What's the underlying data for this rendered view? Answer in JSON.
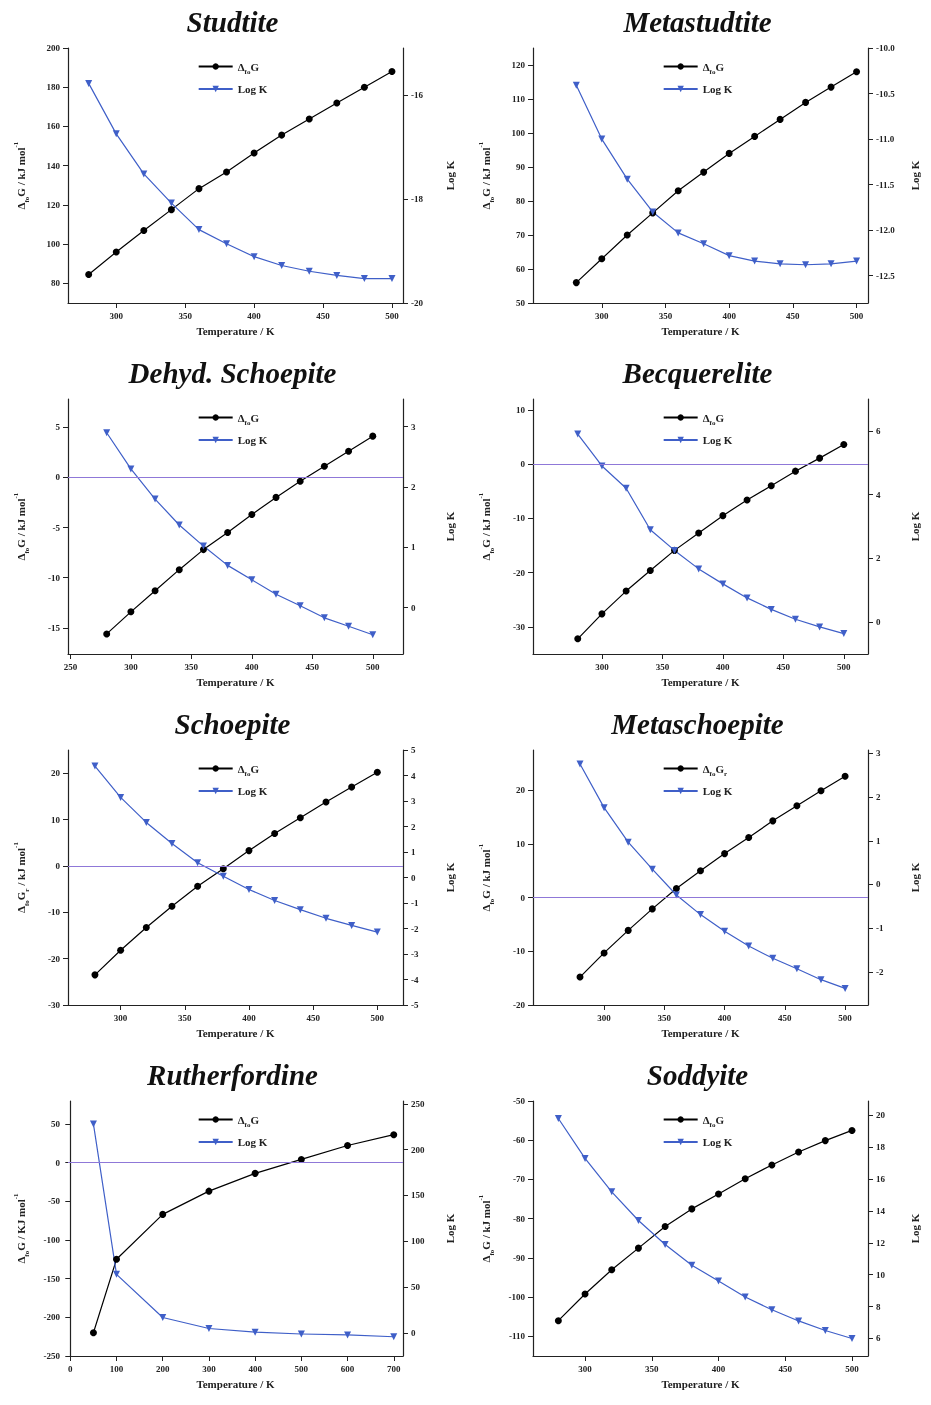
{
  "chart_data": [
    {
      "type": "line",
      "title": "Studtite",
      "xlabel": "Temperature / K",
      "ylabel": "Δ$_{fo}$G / kJ mol$^{-1}$",
      "y2label": "Log K",
      "legend": "top",
      "x": [
        280,
        300,
        320,
        340,
        360,
        380,
        400,
        420,
        440,
        460,
        480,
        500
      ],
      "series": [
        {
          "name": "Δ$_{fo}$G",
          "color": "#000000",
          "marker": "circle",
          "values": [
            84.5,
            96,
            107,
            117.6,
            128.3,
            136.8,
            146.5,
            155.6,
            163.8,
            172,
            180,
            188
          ]
        },
        {
          "name": "Log K",
          "color": "#3f5fc8",
          "marker": "triangle",
          "axis": "y2",
          "values": [
            -15.78,
            -16.75,
            -17.52,
            -18.08,
            -18.59,
            -18.86,
            -19.11,
            -19.28,
            -19.39,
            -19.47,
            -19.53,
            -19.53
          ]
        }
      ],
      "xlim": [
        265,
        508
      ],
      "xticks": [
        300,
        350,
        400,
        450,
        500
      ],
      "ylim": [
        70,
        200
      ],
      "yticks": [
        80,
        100,
        120,
        140,
        160,
        180,
        200
      ],
      "y2lim": [
        -20,
        -15.1
      ],
      "y2ticks": [
        -20,
        -18,
        -16
      ]
    },
    {
      "type": "line",
      "title": "Metastudtite",
      "xlabel": "Temperature / K",
      "ylabel": "Δ$_{fo}$G / kJ mol$^{-1}$",
      "y2label": "Log K",
      "legend": "top",
      "x": [
        280,
        300,
        320,
        340,
        360,
        380,
        400,
        420,
        440,
        460,
        480,
        500
      ],
      "series": [
        {
          "name": "Δ$_{fo}$G",
          "color": "#000000",
          "marker": "circle",
          "values": [
            56,
            63,
            70,
            76.5,
            83,
            88.5,
            94,
            99,
            104,
            109,
            113.5,
            118
          ]
        },
        {
          "name": "Log K",
          "color": "#3f5fc8",
          "marker": "triangle",
          "axis": "y2",
          "values": [
            -10.41,
            -11.0,
            -11.44,
            -11.8,
            -12.03,
            -12.15,
            -12.28,
            -12.34,
            -12.37,
            -12.38,
            -12.37,
            -12.34
          ]
        }
      ],
      "xlim": [
        246,
        509
      ],
      "xticks": [
        300,
        350,
        400,
        450,
        500
      ],
      "ylim": [
        50,
        125
      ],
      "yticks": [
        50,
        60,
        70,
        80,
        90,
        100,
        110,
        120
      ],
      "y2lim": [
        -12.8,
        -10
      ],
      "y2ticks": [
        {
          "value": -12.5,
          "label": "-12.5"
        },
        {
          "value": -12,
          "label": "-12.0"
        },
        {
          "value": -11.5,
          "label": "-11.5"
        },
        {
          "value": -11,
          "label": "-11.0"
        },
        {
          "value": -10.5,
          "label": "-10.5"
        },
        {
          "value": -10,
          "label": "-10.0"
        }
      ]
    },
    {
      "type": "line",
      "title": "Dehyd. Schoepite",
      "xlabel": "Temperature / K",
      "ylabel": "Δ$_{fo}$G / kJ mol$^{-1}$",
      "y2label": "Log K",
      "legend": "top",
      "x": [
        280,
        300,
        320,
        340,
        360,
        380,
        400,
        420,
        440,
        460,
        480,
        500
      ],
      "series": [
        {
          "name": "Δ$_{fo}$G",
          "color": "#000000",
          "marker": "circle",
          "values": [
            -15.6,
            -13.4,
            -11.3,
            -9.2,
            -7.2,
            -5.5,
            -3.7,
            -2.0,
            -0.4,
            1.1,
            2.6,
            4.1
          ]
        },
        {
          "name": "Log K",
          "color": "#3f5fc8",
          "marker": "triangle",
          "axis": "y2",
          "values": [
            2.9,
            2.3,
            1.8,
            1.37,
            1.02,
            0.7,
            0.46,
            0.22,
            0.03,
            -0.17,
            -0.31,
            -0.45
          ]
        }
      ],
      "ref_lines": [
        {
          "axis": "y",
          "value": 0,
          "color": "#8f78d8"
        }
      ],
      "xlim": [
        248,
        525
      ],
      "xticks": [
        250,
        300,
        350,
        400,
        450,
        500
      ],
      "ylim": [
        -17.6,
        7.8
      ],
      "yticks": [
        -15,
        -10,
        -5,
        0,
        5
      ],
      "y2lim": [
        -0.77,
        3.46
      ],
      "y2ticks": [
        0,
        1,
        2,
        3
      ]
    },
    {
      "type": "line",
      "title": "Becquerelite",
      "xlabel": "Temperature / K",
      "ylabel": "Δ$_{fo}$G / kJ mol$^{-1}$",
      "y2label": "Log K",
      "legend": "top",
      "x": [
        280,
        300,
        320,
        340,
        360,
        380,
        400,
        420,
        440,
        460,
        480,
        500
      ],
      "series": [
        {
          "name": "Δ$_{fo}$G",
          "color": "#000000",
          "marker": "circle",
          "values": [
            -32.2,
            -27.6,
            -23.4,
            -19.6,
            -15.9,
            -12.7,
            -9.5,
            -6.6,
            -4.0,
            -1.3,
            1.1,
            3.6
          ]
        },
        {
          "name": "Log K",
          "color": "#3f5fc8",
          "marker": "triangle",
          "axis": "y2",
          "values": [
            5.9,
            4.9,
            4.2,
            2.9,
            2.25,
            1.67,
            1.2,
            0.76,
            0.4,
            0.09,
            -0.15,
            -0.36
          ]
        }
      ],
      "ref_lines": [
        {
          "axis": "y",
          "value": 0,
          "color": "#8f78d8"
        }
      ],
      "xlim": [
        243,
        520
      ],
      "xticks": [
        300,
        350,
        400,
        450,
        500
      ],
      "ylim": [
        -35,
        12
      ],
      "yticks": [
        -30,
        -20,
        -10,
        0,
        10
      ],
      "y2lim": [
        -1,
        7
      ],
      "y2ticks": [
        0,
        2,
        4,
        6
      ]
    },
    {
      "type": "line",
      "title": "Schoepite",
      "xlabel": "Temperature / K",
      "ylabel": "Δ$_{fo}$G$_{r}$ / kJ mol$^{-1}$",
      "y2label": "Log K",
      "legend": "top",
      "x": [
        280,
        300,
        320,
        340,
        360,
        380,
        400,
        420,
        440,
        460,
        480,
        500
      ],
      "series": [
        {
          "name": "Δ$_{fo}$G",
          "color": "#000000",
          "marker": "circle",
          "values": [
            -23.5,
            -18.2,
            -13.3,
            -8.7,
            -4.4,
            -0.6,
            3.3,
            7.0,
            10.4,
            13.8,
            17.0,
            20.2
          ]
        },
        {
          "name": "Log K",
          "color": "#3f5fc8",
          "marker": "triangle",
          "axis": "y2",
          "values": [
            4.37,
            3.14,
            2.16,
            1.33,
            0.58,
            0.05,
            -0.47,
            -0.9,
            -1.26,
            -1.6,
            -1.88,
            -2.14
          ]
        }
      ],
      "ref_lines": [
        {
          "axis": "y",
          "value": 0,
          "color": "#8f78d8"
        }
      ],
      "xlim": [
        259,
        520
      ],
      "xticks": [
        300,
        350,
        400,
        450,
        500
      ],
      "ylim": [
        -30,
        25
      ],
      "yticks": [
        -30,
        -20,
        -10,
        0,
        10,
        20
      ],
      "y2lim": [
        -5,
        5
      ],
      "y2ticks": [
        -5,
        -4,
        -3,
        -2,
        -1,
        0,
        1,
        2,
        3,
        4,
        5
      ]
    },
    {
      "type": "line",
      "title": "Metaschoepite",
      "xlabel": "Temperature / K",
      "ylabel": "Δ$_{fo}$G / kJ mol$^{-1}$",
      "y2label": "Log K",
      "legend": "top",
      "x": [
        280,
        300,
        320,
        340,
        360,
        380,
        400,
        420,
        440,
        460,
        480,
        500
      ],
      "series": [
        {
          "name": "Δ$_{fo}$G$_{r}$",
          "color": "#000000",
          "marker": "circle",
          "values": [
            -14.8,
            -10.3,
            -6.1,
            -2.1,
            1.7,
            5.0,
            8.2,
            11.2,
            14.3,
            17.1,
            19.9,
            22.6
          ]
        },
        {
          "name": "Log K",
          "color": "#3f5fc8",
          "marker": "triangle",
          "axis": "y2",
          "values": [
            2.76,
            1.76,
            0.97,
            0.35,
            -0.24,
            -0.69,
            -1.07,
            -1.41,
            -1.69,
            -1.93,
            -2.18,
            -2.38
          ]
        }
      ],
      "ref_lines": [
        {
          "axis": "y",
          "value": 0,
          "color": "#8f78d8"
        }
      ],
      "xlim": [
        241,
        519
      ],
      "xticks": [
        300,
        350,
        400,
        450,
        500
      ],
      "ylim": [
        -20,
        27.5
      ],
      "yticks": [
        -20,
        -10,
        0,
        10,
        20
      ],
      "y2lim": [
        -2.76,
        3.08
      ],
      "y2ticks": [
        -2,
        -1,
        0,
        1,
        2,
        3
      ]
    },
    {
      "type": "line",
      "title": "Rutherfordine",
      "xlabel": "Temperature / K",
      "ylabel": "Δ$_{fo}$G / KJ mol$^{-1}$",
      "y2label": "Log K",
      "legend": "top",
      "x": [
        50,
        100,
        200,
        300,
        400,
        500,
        600,
        700
      ],
      "series": [
        {
          "name": "Δ$_{fo}$G",
          "color": "#000000",
          "marker": "circle",
          "values": [
            -220,
            -125,
            -67,
            -37,
            -14,
            4,
            22,
            36
          ]
        },
        {
          "name": "Log K",
          "color": "#3f5fc8",
          "marker": "triangle",
          "axis": "y2",
          "values": [
            228,
            64,
            17,
            5,
            1,
            -1,
            -2,
            -4
          ]
        }
      ],
      "ref_lines": [
        {
          "axis": "y",
          "value": 0,
          "color": "#8f78d8"
        }
      ],
      "xlim": [
        -5,
        720
      ],
      "xticks": [
        0,
        100,
        200,
        300,
        400,
        500,
        600,
        700
      ],
      "ylim": [
        -250,
        79.5
      ],
      "yticks": [
        -250,
        -200,
        -150,
        -100,
        -50,
        0,
        50
      ],
      "y2lim": [
        -25,
        253
      ],
      "y2ticks": [
        0,
        50,
        100,
        150,
        200,
        250
      ]
    },
    {
      "type": "line",
      "title": "Soddyite",
      "xlabel": "Temperature / K",
      "ylabel": "Δ$_{fo}$G / kJ mol$^{-1}$",
      "y2label": "Log K",
      "legend": "top",
      "x": [
        280,
        300,
        320,
        340,
        360,
        380,
        400,
        420,
        440,
        460,
        480,
        500
      ],
      "series": [
        {
          "name": "Δ$_{fo}$G",
          "color": "#000000",
          "marker": "circle",
          "values": [
            -106,
            -99.2,
            -93,
            -87.5,
            -82,
            -77.5,
            -73.7,
            -69.8,
            -66.3,
            -63,
            -60.1,
            -57.5
          ]
        },
        {
          "name": "Log K",
          "color": "#3f5fc8",
          "marker": "triangle",
          "axis": "y2",
          "values": [
            19.8,
            17.3,
            15.2,
            13.4,
            11.9,
            10.6,
            9.6,
            8.6,
            7.8,
            7.1,
            6.5,
            6.0
          ]
        }
      ],
      "xlim": [
        261,
        512
      ],
      "xticks": [
        300,
        350,
        400,
        450,
        500
      ],
      "ylim": [
        -115,
        -50
      ],
      "yticks": [
        -110,
        -100,
        -90,
        -80,
        -70,
        -60,
        -50
      ],
      "y2lim": [
        4.9,
        20.9
      ],
      "y2ticks": [
        6,
        8,
        10,
        12,
        14,
        16,
        18,
        20
      ]
    }
  ]
}
